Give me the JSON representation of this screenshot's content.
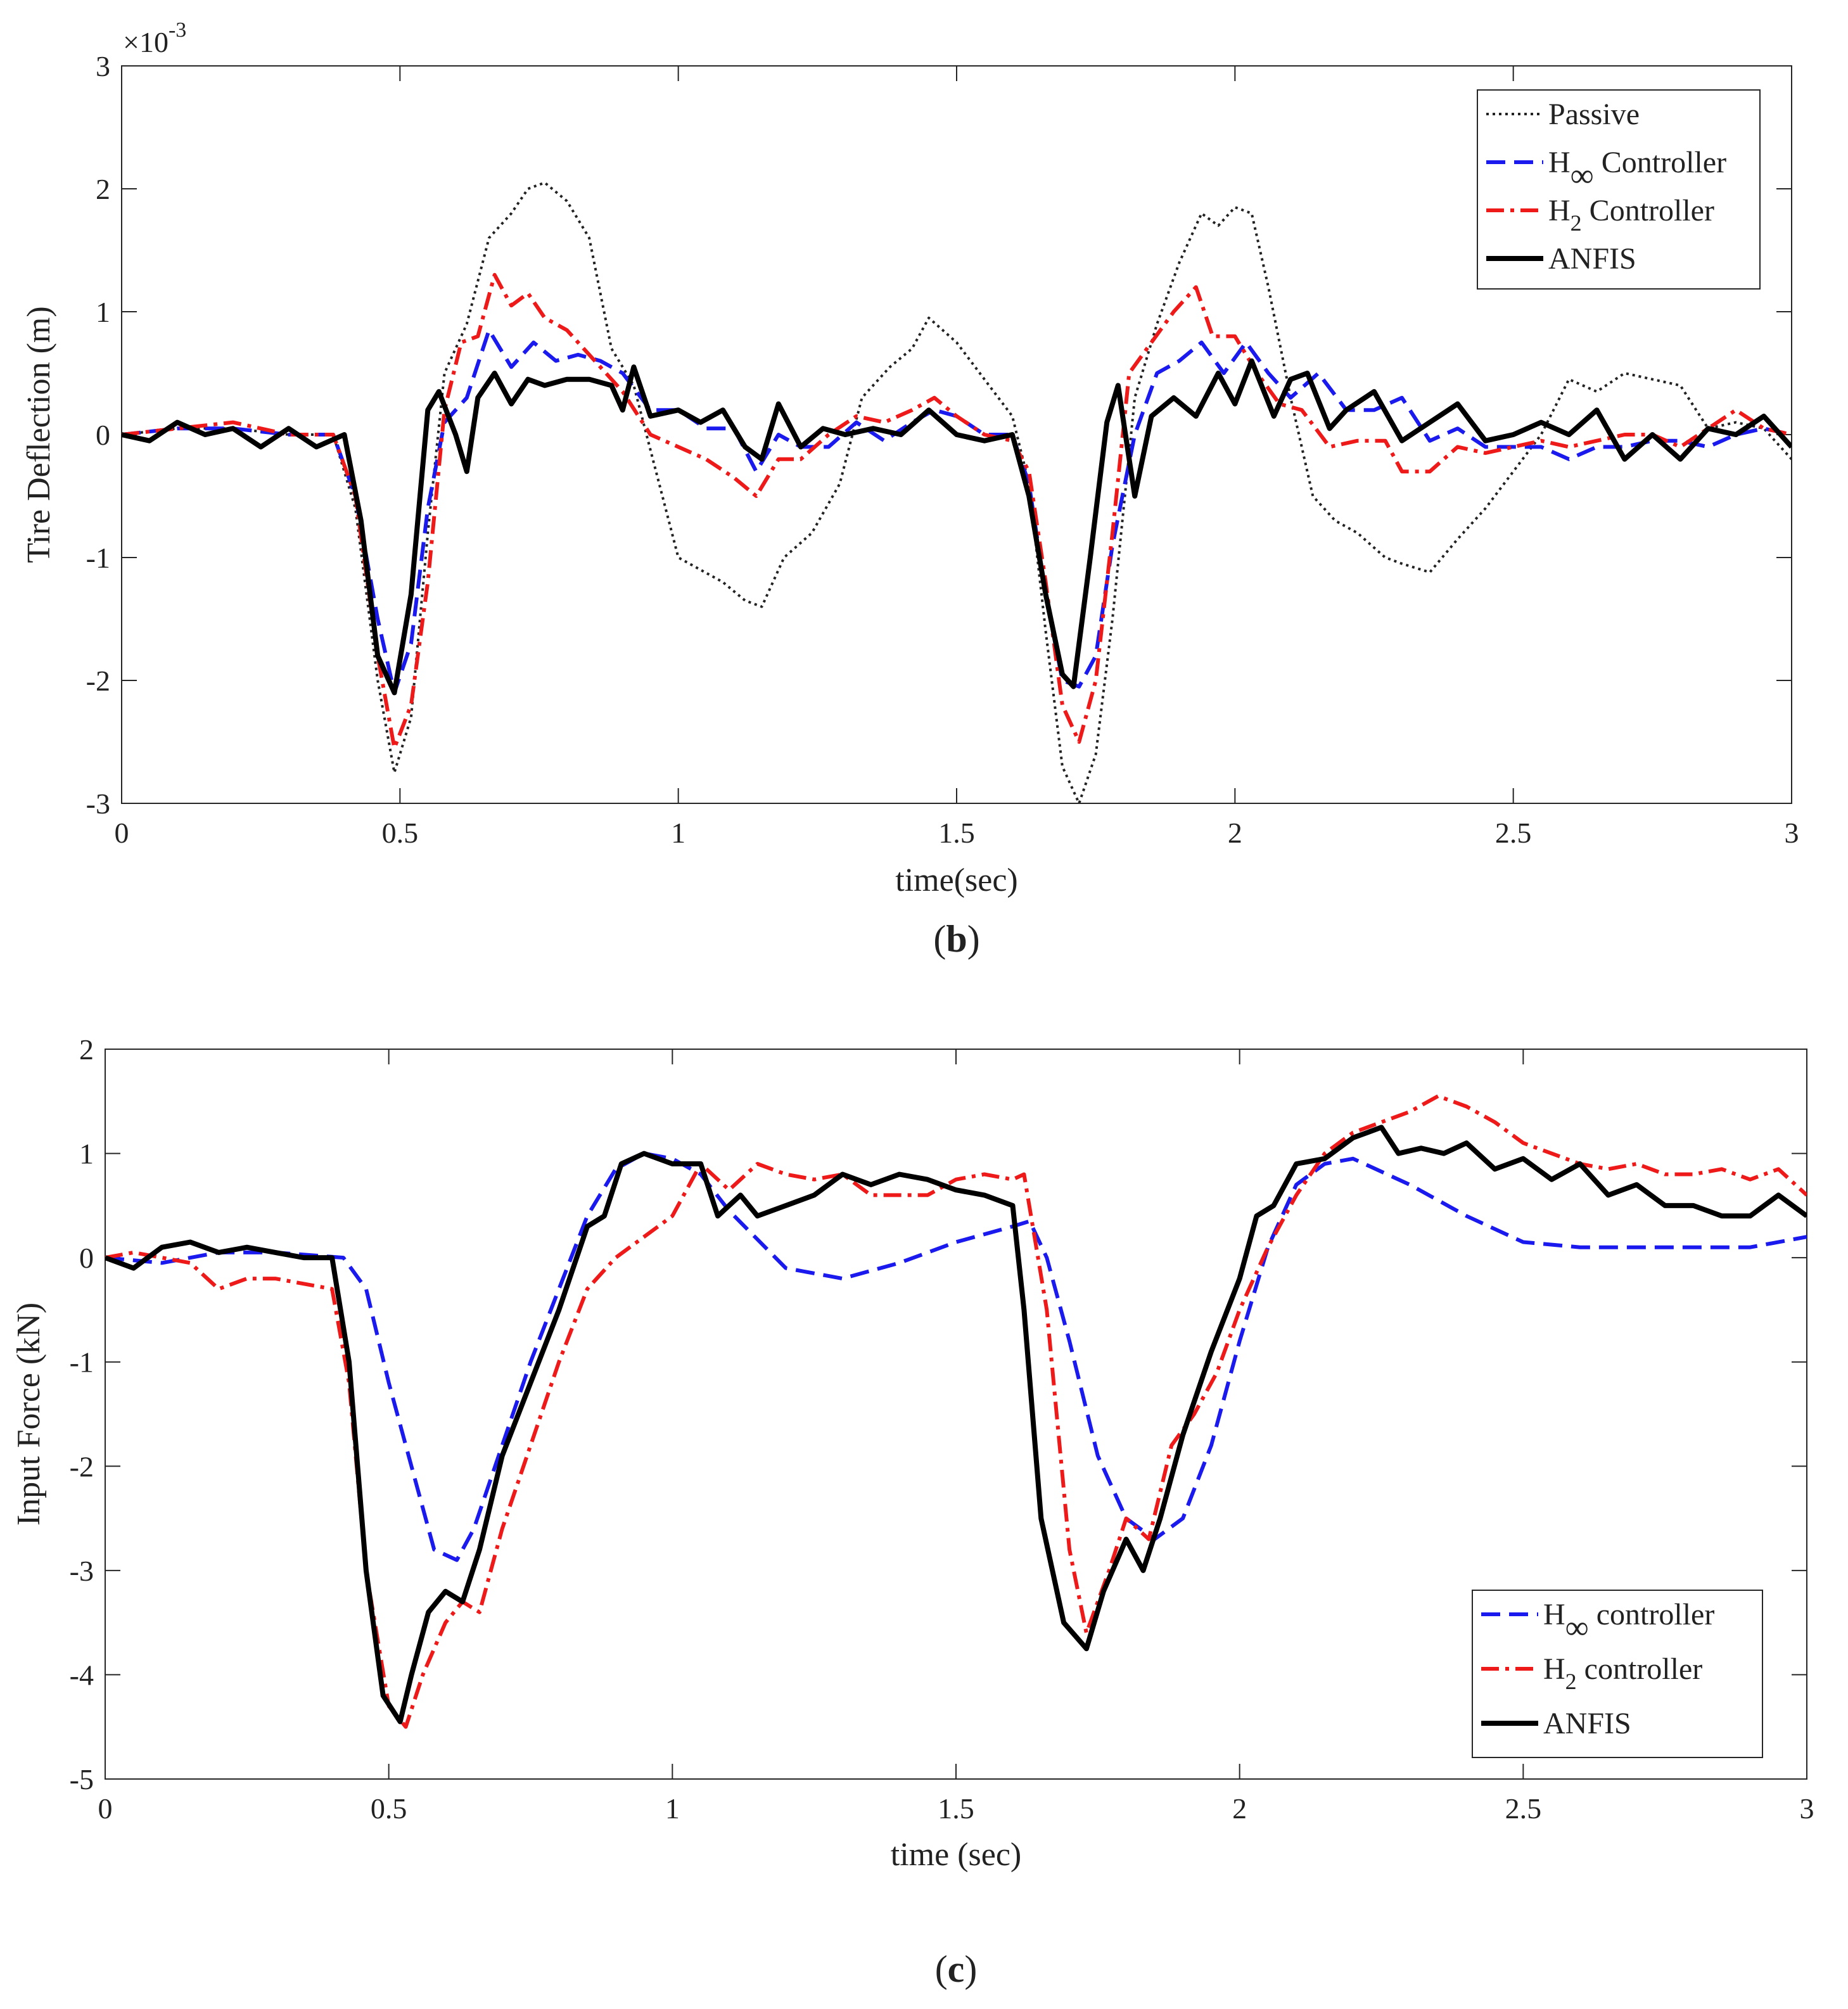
{
  "chart_data": [
    {
      "type": "line",
      "panel_label": "b",
      "title": "",
      "xlabel": "time(sec)",
      "ylabel": "Tire Deflection (m)",
      "y_exponent_label": "×10",
      "y_exponent_power": "-3",
      "xlim": [
        0,
        3
      ],
      "ylim": [
        -3,
        3
      ],
      "xticks": [
        0,
        0.5,
        1,
        1.5,
        2,
        2.5,
        3
      ],
      "xtick_labels": [
        "0",
        "0.5",
        "1",
        "1.5",
        "2",
        "2.5",
        "3"
      ],
      "yticks": [
        -3,
        -2,
        -1,
        0,
        1,
        2,
        3
      ],
      "ytick_labels": [
        "-3",
        "-2",
        "-1",
        "0",
        "1",
        "2",
        "3"
      ],
      "legend_position": "top-right",
      "grid": false,
      "series": [
        {
          "name": "Passive",
          "legend_base": "Passive",
          "legend_sub": "",
          "legend_rest": "",
          "color": "#222222",
          "style": "dotted",
          "x": [
            0,
            0.1,
            0.2,
            0.3,
            0.38,
            0.42,
            0.46,
            0.49,
            0.52,
            0.55,
            0.58,
            0.62,
            0.66,
            0.7,
            0.73,
            0.76,
            0.8,
            0.84,
            0.88,
            0.92,
            0.96,
            1.0,
            1.04,
            1.08,
            1.12,
            1.15,
            1.19,
            1.24,
            1.29,
            1.33,
            1.38,
            1.42,
            1.45,
            1.5,
            1.55,
            1.6,
            1.63,
            1.66,
            1.69,
            1.72,
            1.75,
            1.78,
            1.82,
            1.86,
            1.9,
            1.94,
            1.97,
            2.0,
            2.03,
            2.06,
            2.1,
            2.14,
            2.18,
            2.22,
            2.27,
            2.3,
            2.35,
            2.4,
            2.45,
            2.5,
            2.55,
            2.6,
            2.65,
            2.7,
            2.75,
            2.8,
            2.85,
            2.9,
            2.95,
            3.0
          ],
          "y": [
            0,
            0.05,
            0.05,
            0,
            0,
            -0.6,
            -2.0,
            -2.75,
            -2.3,
            -0.8,
            0.5,
            0.9,
            1.6,
            1.8,
            2.0,
            2.05,
            1.9,
            1.6,
            0.7,
            0.4,
            -0.3,
            -1.0,
            -1.1,
            -1.2,
            -1.35,
            -1.4,
            -1.0,
            -0.8,
            -0.4,
            0.3,
            0.55,
            0.7,
            0.95,
            0.75,
            0.45,
            0.15,
            -0.4,
            -1.6,
            -2.7,
            -3.0,
            -2.6,
            -1.5,
            0.3,
            0.9,
            1.4,
            1.8,
            1.7,
            1.85,
            1.8,
            1.2,
            0.3,
            -0.5,
            -0.7,
            -0.8,
            -1.0,
            -1.05,
            -1.12,
            -0.85,
            -0.6,
            -0.3,
            0.0,
            0.45,
            0.35,
            0.5,
            0.45,
            0.4,
            0.05,
            0.1,
            0.05,
            -0.2
          ]
        },
        {
          "name": "H∞ Controller",
          "legend_base": "H",
          "legend_sub": "∞",
          "legend_rest": " Controller",
          "color": "#1a1aee",
          "style": "dashed",
          "x": [
            0,
            0.1,
            0.2,
            0.3,
            0.38,
            0.42,
            0.46,
            0.49,
            0.52,
            0.55,
            0.58,
            0.62,
            0.66,
            0.7,
            0.74,
            0.78,
            0.82,
            0.86,
            0.9,
            0.95,
            1.0,
            1.05,
            1.1,
            1.14,
            1.18,
            1.22,
            1.27,
            1.32,
            1.37,
            1.42,
            1.46,
            1.5,
            1.55,
            1.6,
            1.63,
            1.66,
            1.69,
            1.72,
            1.75,
            1.78,
            1.82,
            1.86,
            1.9,
            1.94,
            1.98,
            2.02,
            2.06,
            2.1,
            2.15,
            2.2,
            2.25,
            2.3,
            2.35,
            2.4,
            2.45,
            2.5,
            2.55,
            2.6,
            2.65,
            2.7,
            2.75,
            2.8,
            2.85,
            2.9,
            2.95,
            3.0
          ],
          "y": [
            0,
            0.05,
            0.05,
            0,
            0,
            -0.5,
            -1.5,
            -2.1,
            -1.7,
            -0.6,
            0.1,
            0.3,
            0.85,
            0.55,
            0.75,
            0.6,
            0.65,
            0.6,
            0.5,
            0.2,
            0.2,
            0.05,
            0.05,
            -0.3,
            0.0,
            -0.1,
            -0.1,
            0.1,
            -0.05,
            0.1,
            0.2,
            0.15,
            0.0,
            0.0,
            -0.4,
            -1.3,
            -2.0,
            -2.05,
            -1.8,
            -0.9,
            0.0,
            0.5,
            0.6,
            0.75,
            0.5,
            0.75,
            0.5,
            0.3,
            0.5,
            0.2,
            0.2,
            0.3,
            -0.05,
            0.05,
            -0.1,
            -0.1,
            -0.1,
            -0.2,
            -0.1,
            -0.1,
            -0.05,
            -0.05,
            -0.1,
            0.0,
            0.05,
            0.0
          ]
        },
        {
          "name": "H2 Controller",
          "legend_base": "H",
          "legend_sub": "2",
          "legend_rest": " Controller",
          "color": "#ee1a1a",
          "style": "dashdot",
          "x": [
            0,
            0.1,
            0.2,
            0.3,
            0.38,
            0.42,
            0.46,
            0.49,
            0.52,
            0.55,
            0.58,
            0.61,
            0.64,
            0.67,
            0.7,
            0.73,
            0.76,
            0.8,
            0.85,
            0.9,
            0.95,
            1.0,
            1.05,
            1.1,
            1.14,
            1.18,
            1.22,
            1.27,
            1.32,
            1.37,
            1.42,
            1.46,
            1.5,
            1.55,
            1.6,
            1.63,
            1.66,
            1.69,
            1.72,
            1.75,
            1.78,
            1.81,
            1.85,
            1.89,
            1.93,
            1.96,
            2.0,
            2.04,
            2.08,
            2.12,
            2.17,
            2.22,
            2.27,
            2.3,
            2.35,
            2.4,
            2.45,
            2.5,
            2.55,
            2.6,
            2.65,
            2.7,
            2.75,
            2.8,
            2.85,
            2.9,
            2.95,
            3.0
          ],
          "y": [
            0,
            0.05,
            0.1,
            0,
            0,
            -0.5,
            -1.8,
            -2.55,
            -2.2,
            -1.2,
            0.2,
            0.75,
            0.8,
            1.3,
            1.05,
            1.15,
            0.95,
            0.85,
            0.6,
            0.35,
            0.0,
            -0.1,
            -0.2,
            -0.35,
            -0.5,
            -0.2,
            -0.2,
            0.0,
            0.15,
            0.1,
            0.2,
            0.3,
            0.15,
            0.0,
            -0.05,
            -0.3,
            -1.2,
            -2.2,
            -2.5,
            -2.0,
            -0.8,
            0.5,
            0.75,
            1.0,
            1.2,
            0.8,
            0.8,
            0.5,
            0.25,
            0.2,
            -0.1,
            -0.05,
            -0.05,
            -0.3,
            -0.3,
            -0.1,
            -0.15,
            -0.1,
            -0.05,
            -0.1,
            -0.05,
            0.0,
            0.0,
            -0.1,
            0.05,
            0.2,
            0.05,
            0.0
          ]
        },
        {
          "name": "ANFIS",
          "legend_base": "ANFIS",
          "legend_sub": "",
          "legend_rest": "",
          "color": "#000000",
          "style": "solid",
          "x": [
            0,
            0.05,
            0.1,
            0.15,
            0.2,
            0.25,
            0.3,
            0.35,
            0.4,
            0.43,
            0.46,
            0.49,
            0.52,
            0.55,
            0.57,
            0.6,
            0.62,
            0.64,
            0.67,
            0.7,
            0.73,
            0.76,
            0.8,
            0.84,
            0.88,
            0.9,
            0.92,
            0.95,
            1.0,
            1.04,
            1.08,
            1.12,
            1.15,
            1.18,
            1.22,
            1.26,
            1.3,
            1.35,
            1.4,
            1.45,
            1.5,
            1.55,
            1.6,
            1.63,
            1.66,
            1.69,
            1.71,
            1.74,
            1.77,
            1.79,
            1.82,
            1.85,
            1.89,
            1.93,
            1.97,
            2.0,
            2.03,
            2.07,
            2.1,
            2.13,
            2.17,
            2.2,
            2.25,
            2.3,
            2.35,
            2.4,
            2.45,
            2.5,
            2.55,
            2.6,
            2.65,
            2.7,
            2.75,
            2.8,
            2.85,
            2.9,
            2.95,
            3.0
          ],
          "y": [
            0,
            -0.05,
            0.1,
            0.0,
            0.05,
            -0.1,
            0.05,
            -0.1,
            0.0,
            -0.7,
            -1.8,
            -2.1,
            -1.3,
            0.2,
            0.35,
            0.0,
            -0.3,
            0.3,
            0.5,
            0.25,
            0.45,
            0.4,
            0.45,
            0.45,
            0.4,
            0.2,
            0.55,
            0.15,
            0.2,
            0.1,
            0.2,
            -0.1,
            -0.2,
            0.25,
            -0.1,
            0.05,
            0.0,
            0.05,
            0.0,
            0.2,
            0.0,
            -0.05,
            0.0,
            -0.5,
            -1.3,
            -1.95,
            -2.05,
            -1.0,
            0.1,
            0.4,
            -0.5,
            0.15,
            0.3,
            0.15,
            0.5,
            0.25,
            0.6,
            0.15,
            0.45,
            0.5,
            0.05,
            0.2,
            0.35,
            -0.05,
            0.1,
            0.25,
            -0.05,
            0.0,
            0.1,
            0.0,
            0.2,
            -0.2,
            0.0,
            -0.2,
            0.05,
            0.0,
            0.15,
            -0.1
          ]
        }
      ]
    },
    {
      "type": "line",
      "panel_label": "c",
      "title": "",
      "xlabel": "time (sec)",
      "ylabel": "Input Force (kN)",
      "xlim": [
        0,
        3
      ],
      "ylim": [
        -5,
        2
      ],
      "xticks": [
        0,
        0.5,
        1,
        1.5,
        2,
        2.5,
        3
      ],
      "xtick_labels": [
        "0",
        "0.5",
        "1",
        "1.5",
        "2",
        "2.5",
        "3"
      ],
      "yticks": [
        -5,
        -4,
        -3,
        -2,
        -1,
        0,
        1,
        2
      ],
      "ytick_labels": [
        "-5",
        "-4",
        "-3",
        "-2",
        "-1",
        "0",
        "1",
        "2"
      ],
      "legend_position": "bottom-right",
      "grid": false,
      "series": [
        {
          "name": "H∞ controller",
          "legend_base": "H",
          "legend_sub": "∞",
          "legend_rest": " controller",
          "color": "#1a1aee",
          "style": "dashed",
          "x": [
            0,
            0.1,
            0.2,
            0.3,
            0.42,
            0.46,
            0.5,
            0.55,
            0.58,
            0.62,
            0.65,
            0.7,
            0.75,
            0.8,
            0.85,
            0.9,
            0.95,
            1.0,
            1.05,
            1.1,
            1.2,
            1.3,
            1.4,
            1.5,
            1.6,
            1.63,
            1.66,
            1.7,
            1.75,
            1.8,
            1.85,
            1.9,
            1.95,
            2.0,
            2.05,
            2.1,
            2.15,
            2.2,
            2.3,
            2.4,
            2.5,
            2.6,
            2.7,
            2.8,
            2.9,
            3.0
          ],
          "y": [
            0,
            -0.05,
            0.05,
            0.05,
            0.0,
            -0.3,
            -1.2,
            -2.2,
            -2.8,
            -2.9,
            -2.6,
            -1.8,
            -1.0,
            -0.3,
            0.4,
            0.85,
            1.0,
            0.95,
            0.8,
            0.45,
            -0.1,
            -0.2,
            -0.05,
            0.15,
            0.3,
            0.35,
            0.0,
            -0.8,
            -1.9,
            -2.5,
            -2.7,
            -2.5,
            -1.8,
            -0.8,
            0.1,
            0.7,
            0.9,
            0.95,
            0.7,
            0.4,
            0.15,
            0.1,
            0.1,
            0.1,
            0.1,
            0.2
          ]
        },
        {
          "name": "H2 controller",
          "legend_base": "H",
          "legend_sub": "2",
          "legend_rest": " controller",
          "color": "#ee1a1a",
          "style": "dashdot",
          "x": [
            0,
            0.05,
            0.1,
            0.15,
            0.2,
            0.25,
            0.3,
            0.35,
            0.4,
            0.43,
            0.46,
            0.5,
            0.53,
            0.56,
            0.6,
            0.63,
            0.66,
            0.7,
            0.75,
            0.8,
            0.85,
            0.9,
            0.95,
            1.0,
            1.05,
            1.1,
            1.15,
            1.2,
            1.25,
            1.3,
            1.35,
            1.4,
            1.45,
            1.5,
            1.55,
            1.6,
            1.62,
            1.66,
            1.7,
            1.73,
            1.77,
            1.8,
            1.84,
            1.88,
            1.92,
            1.96,
            2.0,
            2.05,
            2.1,
            2.15,
            2.2,
            2.25,
            2.3,
            2.35,
            2.4,
            2.45,
            2.5,
            2.55,
            2.6,
            2.65,
            2.7,
            2.75,
            2.8,
            2.85,
            2.9,
            2.95,
            3.0
          ],
          "y": [
            0,
            0.05,
            0.0,
            -0.05,
            -0.3,
            -0.2,
            -0.2,
            -0.25,
            -0.3,
            -1.2,
            -3.0,
            -4.3,
            -4.5,
            -4.0,
            -3.5,
            -3.3,
            -3.4,
            -2.6,
            -1.8,
            -1.0,
            -0.3,
            0.0,
            0.2,
            0.4,
            0.9,
            0.65,
            0.9,
            0.8,
            0.75,
            0.8,
            0.6,
            0.6,
            0.6,
            0.75,
            0.8,
            0.75,
            0.8,
            -0.5,
            -2.8,
            -3.6,
            -3.0,
            -2.5,
            -2.7,
            -1.8,
            -1.5,
            -1.1,
            -0.5,
            0.1,
            0.6,
            1.0,
            1.2,
            1.3,
            1.4,
            1.55,
            1.45,
            1.3,
            1.1,
            1.0,
            0.9,
            0.85,
            0.9,
            0.8,
            0.8,
            0.85,
            0.75,
            0.85,
            0.6
          ]
        },
        {
          "name": "ANFIS",
          "legend_base": "ANFIS",
          "legend_sub": "",
          "legend_rest": "",
          "color": "#000000",
          "style": "solid",
          "x": [
            0,
            0.05,
            0.1,
            0.15,
            0.2,
            0.25,
            0.3,
            0.35,
            0.4,
            0.43,
            0.46,
            0.49,
            0.52,
            0.54,
            0.57,
            0.6,
            0.63,
            0.66,
            0.7,
            0.75,
            0.8,
            0.85,
            0.88,
            0.91,
            0.95,
            1.0,
            1.05,
            1.08,
            1.12,
            1.15,
            1.2,
            1.25,
            1.3,
            1.35,
            1.4,
            1.45,
            1.5,
            1.55,
            1.6,
            1.62,
            1.65,
            1.69,
            1.73,
            1.76,
            1.8,
            1.83,
            1.86,
            1.9,
            1.95,
            2.0,
            2.03,
            2.06,
            2.1,
            2.15,
            2.2,
            2.25,
            2.28,
            2.32,
            2.36,
            2.4,
            2.45,
            2.5,
            2.55,
            2.6,
            2.65,
            2.7,
            2.75,
            2.8,
            2.85,
            2.9,
            2.95,
            3.0
          ],
          "y": [
            0,
            -0.1,
            0.1,
            0.15,
            0.05,
            0.1,
            0.05,
            0.0,
            0.0,
            -1.0,
            -3.0,
            -4.2,
            -4.45,
            -4.0,
            -3.4,
            -3.2,
            -3.3,
            -2.8,
            -1.9,
            -1.2,
            -0.5,
            0.3,
            0.4,
            0.9,
            1.0,
            0.9,
            0.9,
            0.4,
            0.6,
            0.4,
            0.5,
            0.6,
            0.8,
            0.7,
            0.8,
            0.75,
            0.65,
            0.6,
            0.5,
            -0.5,
            -2.5,
            -3.5,
            -3.75,
            -3.2,
            -2.7,
            -3.0,
            -2.5,
            -1.7,
            -0.9,
            -0.2,
            0.4,
            0.5,
            0.9,
            0.95,
            1.15,
            1.25,
            1.0,
            1.05,
            1.0,
            1.1,
            0.85,
            0.95,
            0.75,
            0.9,
            0.6,
            0.7,
            0.5,
            0.5,
            0.4,
            0.4,
            0.6,
            0.4
          ]
        }
      ]
    }
  ]
}
